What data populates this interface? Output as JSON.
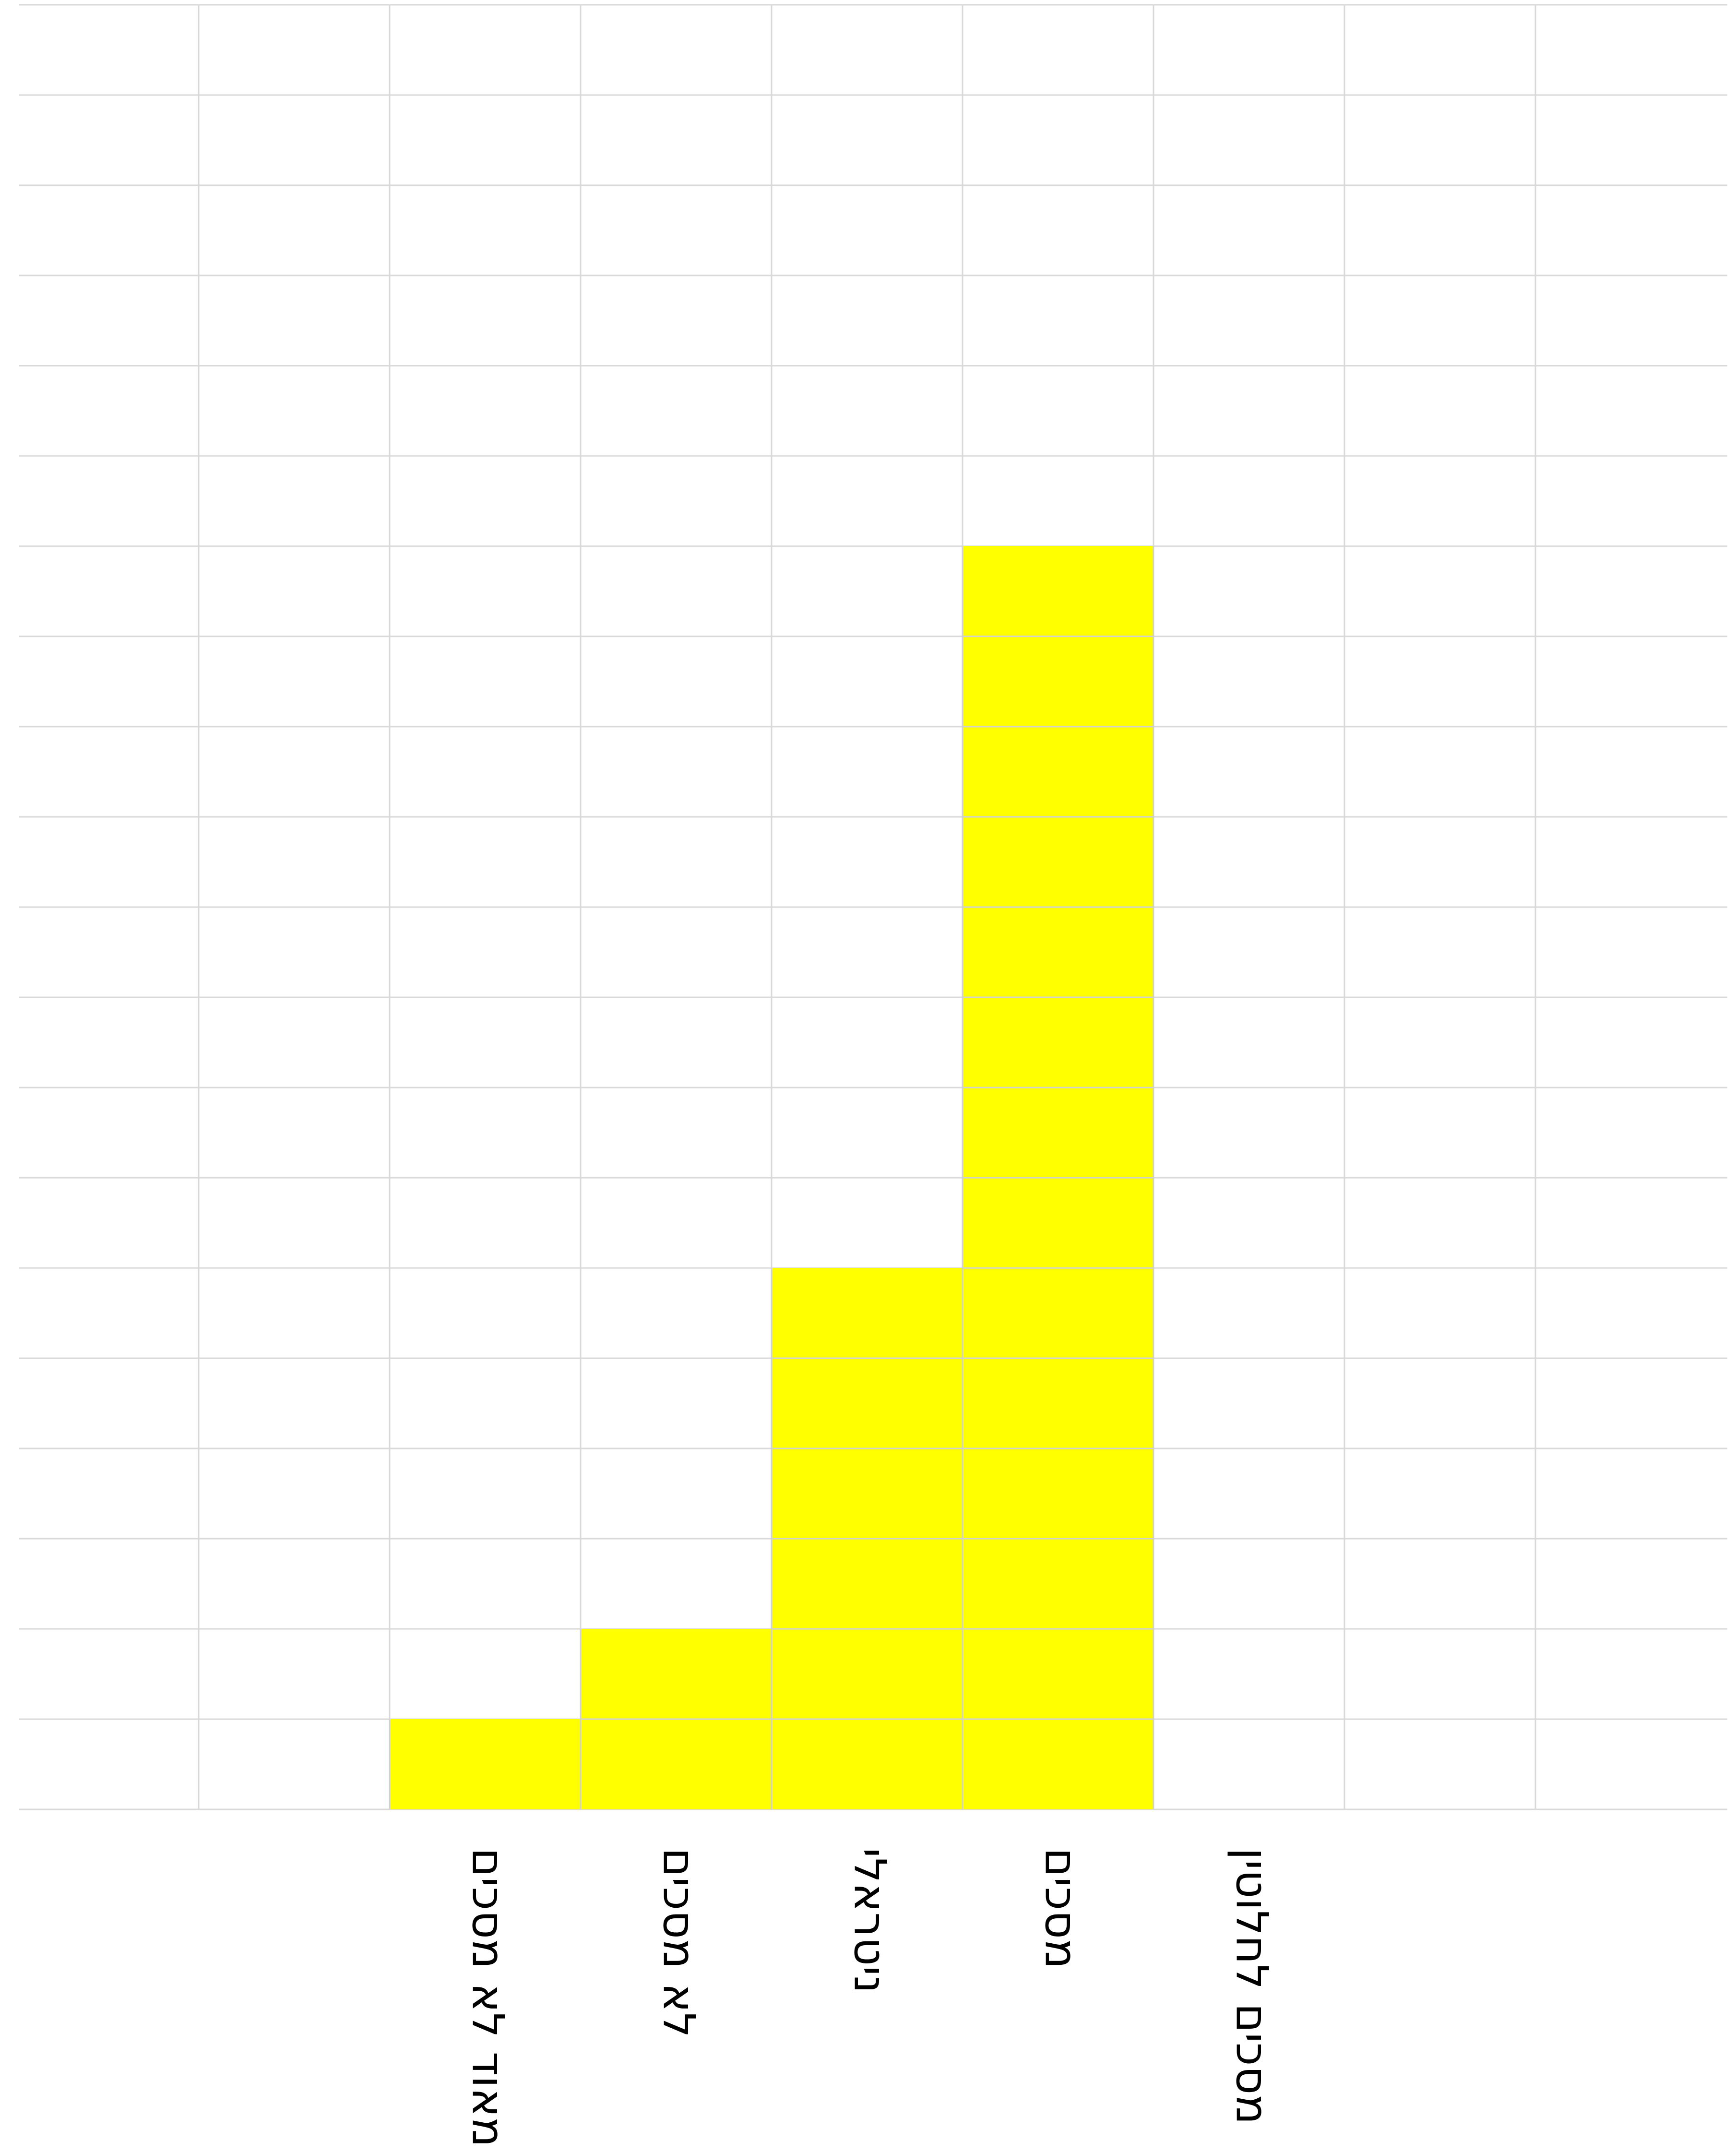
{
  "chart_data": {
    "type": "bar",
    "categories": [
      "מאוד לא מסכים",
      "לא מסכים",
      "ניטראלי",
      "מסכים",
      "מסכים לחלוטין"
    ],
    "values": [
      1,
      2,
      6,
      14,
      0
    ],
    "ylim": [
      0,
      20
    ],
    "grid": true,
    "bar_color": "#ffff00",
    "grid_color": "#d9d9d9",
    "label_orientation": "vertical"
  }
}
